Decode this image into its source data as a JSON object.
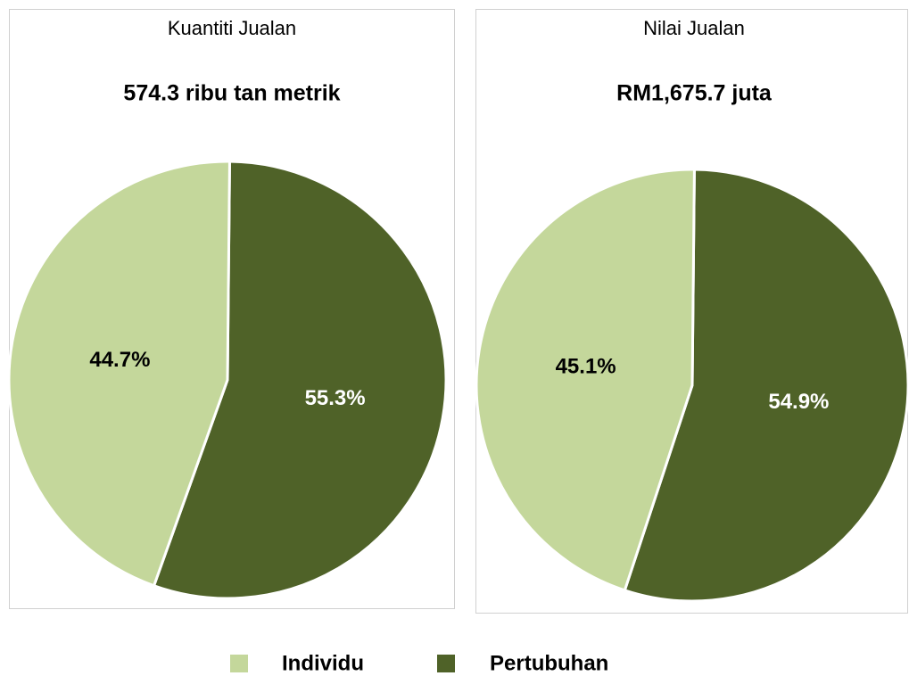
{
  "chart_data": [
    {
      "type": "pie",
      "title": "Kuantiti Jualan",
      "subtitle": "574.3 ribu tan metrik",
      "categories": [
        "Pertubuhan",
        "Individu"
      ],
      "values": [
        55.3,
        44.7
      ],
      "value_labels": [
        "55.3%",
        "44.7%"
      ],
      "colors": [
        "#4f6228",
        "#c4d79b"
      ],
      "label_colors": [
        "#ffffff",
        "#000000"
      ]
    },
    {
      "type": "pie",
      "title": "Nilai Jualan",
      "subtitle": "RM1,675.7 juta",
      "categories": [
        "Pertubuhan",
        "Individu"
      ],
      "values": [
        54.9,
        45.1
      ],
      "value_labels": [
        "54.9%",
        "45.1%"
      ],
      "colors": [
        "#4f6228",
        "#c4d79b"
      ],
      "label_colors": [
        "#ffffff",
        "#000000"
      ]
    }
  ]
}
